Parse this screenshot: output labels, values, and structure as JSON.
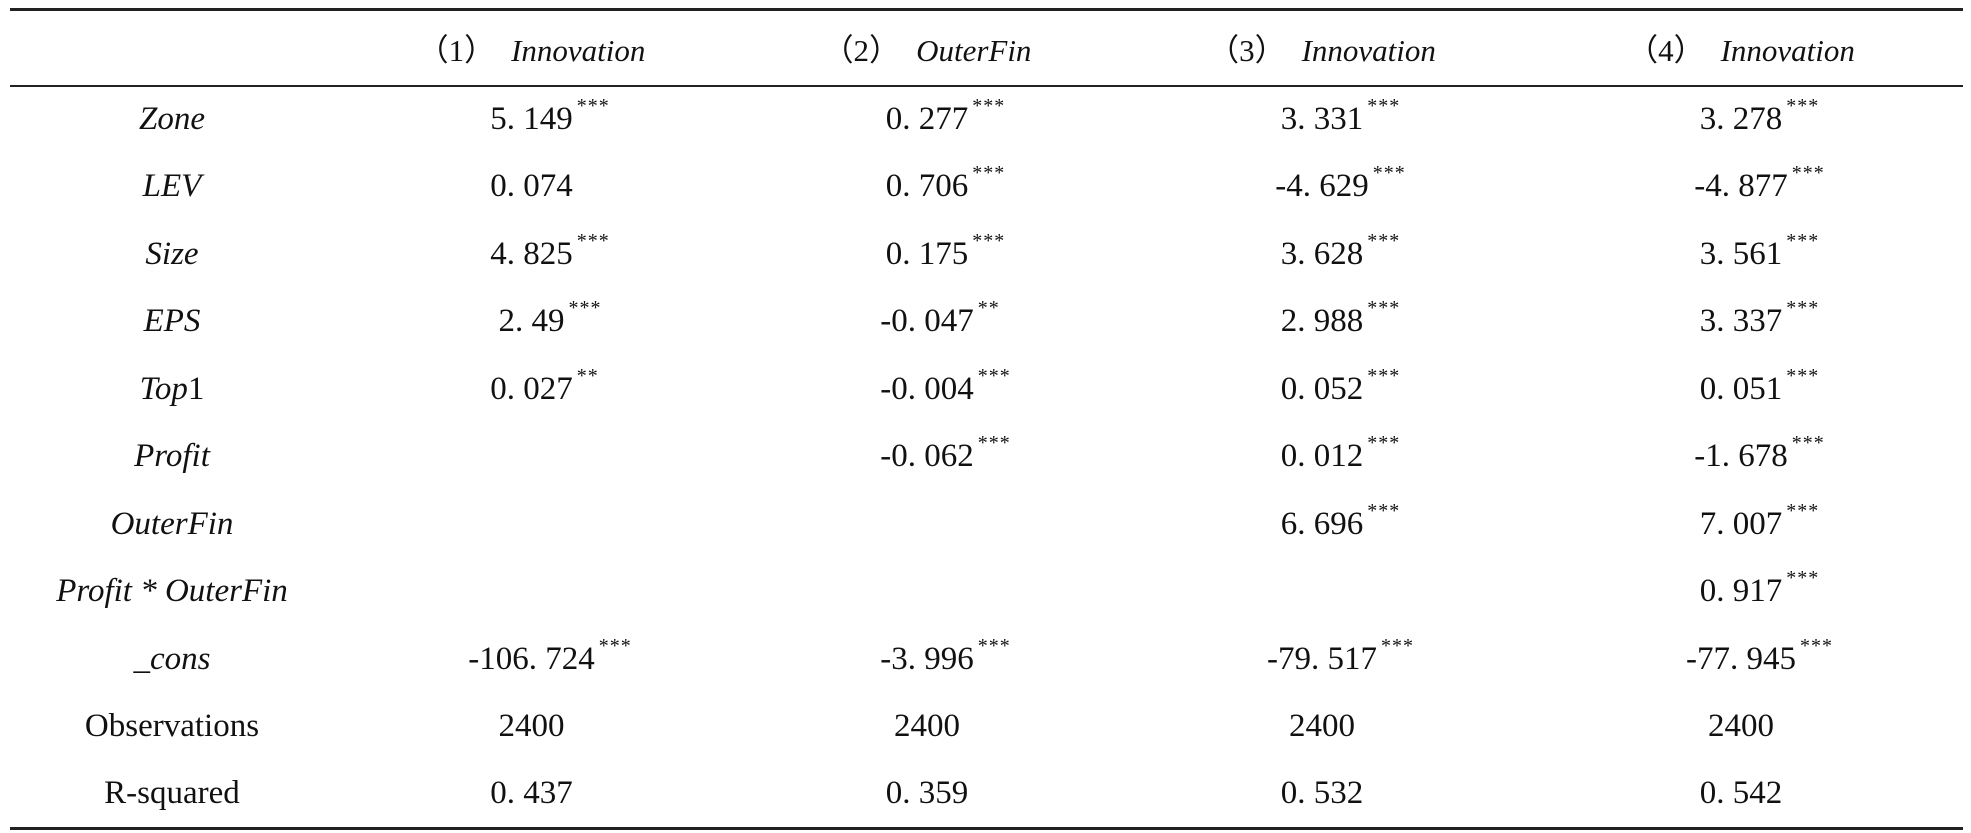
{
  "header": {
    "col0": "",
    "col1_no": "（1）",
    "col1_var": "Innovation",
    "col2_no": "（2）",
    "col2_var": "OuterFin",
    "col3_no": "（3）",
    "col3_var": "Innovation",
    "col4_no": "（4）",
    "col4_var": "Innovation"
  },
  "rows": [
    {
      "label": "Zone",
      "cells": [
        {
          "v": "5. 149",
          "s": "***"
        },
        {
          "v": "0. 277",
          "s": "***"
        },
        {
          "v": "3. 331",
          "s": "***"
        },
        {
          "v": "3. 278",
          "s": "***"
        }
      ]
    },
    {
      "label": "LEV",
      "cells": [
        {
          "v": "0. 074",
          "s": ""
        },
        {
          "v": "0. 706",
          "s": "***"
        },
        {
          "v": "-4. 629",
          "s": "***"
        },
        {
          "v": "-4. 877",
          "s": "***"
        }
      ]
    },
    {
      "label": "Size",
      "cells": [
        {
          "v": "4. 825",
          "s": "***"
        },
        {
          "v": "0. 175",
          "s": "***"
        },
        {
          "v": "3. 628",
          "s": "***"
        },
        {
          "v": "3. 561",
          "s": "***"
        }
      ]
    },
    {
      "label": "EPS",
      "cells": [
        {
          "v": "2. 49",
          "s": "***"
        },
        {
          "v": "-0. 047",
          "s": "**"
        },
        {
          "v": "2. 988",
          "s": "***"
        },
        {
          "v": "3. 337",
          "s": "***"
        }
      ]
    },
    {
      "label_it": "Top",
      "label_rest": "1",
      "cells": [
        {
          "v": "0. 027",
          "s": "**"
        },
        {
          "v": "-0. 004",
          "s": "***"
        },
        {
          "v": "0. 052",
          "s": "***"
        },
        {
          "v": "0. 051",
          "s": "***"
        }
      ]
    },
    {
      "label": "Profit",
      "cells": [
        {
          "v": "",
          "s": ""
        },
        {
          "v": "-0. 062",
          "s": "***"
        },
        {
          "v": "0. 012",
          "s": "***"
        },
        {
          "v": "-1. 678",
          "s": "***"
        }
      ]
    },
    {
      "label": "OuterFin",
      "cells": [
        {
          "v": "",
          "s": ""
        },
        {
          "v": "",
          "s": ""
        },
        {
          "v": "6. 696",
          "s": "***"
        },
        {
          "v": "7. 007",
          "s": "***"
        }
      ]
    },
    {
      "label": "Profit * OuterFin",
      "cells": [
        {
          "v": "",
          "s": ""
        },
        {
          "v": "",
          "s": ""
        },
        {
          "v": "",
          "s": ""
        },
        {
          "v": "0. 917",
          "s": "***"
        }
      ]
    },
    {
      "label": "_cons",
      "cells": [
        {
          "v": "-106. 724",
          "s": "***"
        },
        {
          "v": "-3. 996",
          "s": "***"
        },
        {
          "v": "-79. 517",
          "s": "***"
        },
        {
          "v": "-77. 945",
          "s": "***"
        }
      ]
    },
    {
      "label": "Observations",
      "plain": true,
      "cells": [
        {
          "v": "2400",
          "s": ""
        },
        {
          "v": "2400",
          "s": ""
        },
        {
          "v": "2400",
          "s": ""
        },
        {
          "v": "2400",
          "s": ""
        }
      ]
    },
    {
      "label": "R-squared",
      "plain": true,
      "cells": [
        {
          "v": "0. 437",
          "s": ""
        },
        {
          "v": "0. 359",
          "s": ""
        },
        {
          "v": "0. 532",
          "s": ""
        },
        {
          "v": "0. 542",
          "s": ""
        }
      ]
    }
  ]
}
